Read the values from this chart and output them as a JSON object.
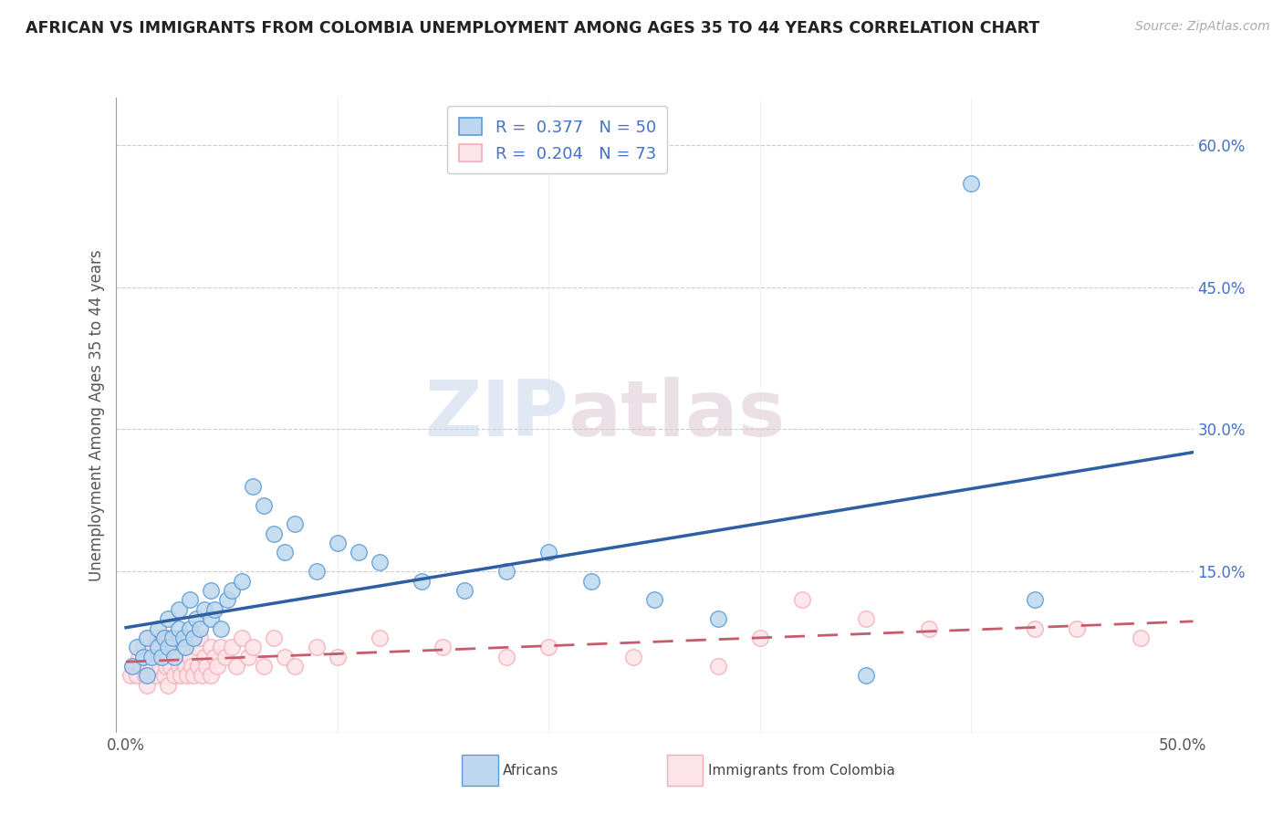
{
  "title": "AFRICAN VS IMMIGRANTS FROM COLOMBIA UNEMPLOYMENT AMONG AGES 35 TO 44 YEARS CORRELATION CHART",
  "source": "Source: ZipAtlas.com",
  "ylabel": "Unemployment Among Ages 35 to 44 years",
  "xlim": [
    -0.005,
    0.505
  ],
  "ylim": [
    -0.02,
    0.65
  ],
  "xtick_positions": [
    0.0,
    0.1,
    0.2,
    0.3,
    0.4,
    0.5
  ],
  "xtick_labels": [
    "0.0%",
    "",
    "",
    "",
    "",
    "50.0%"
  ],
  "ytick_positions": [
    0.15,
    0.3,
    0.45,
    0.6
  ],
  "ytick_labels": [
    "15.0%",
    "30.0%",
    "45.0%",
    "60.0%"
  ],
  "watermark_line1": "ZIP",
  "watermark_line2": "atlas",
  "legend_r1": "R =  0.377   N = 50",
  "legend_r2": "R =  0.204   N = 73",
  "legend_label1": "Africans",
  "legend_label2": "Immigrants from Colombia",
  "color_african_edge": "#5b9bd5",
  "color_african_fill": "#bdd7ee",
  "color_colombia_edge": "#f4acb7",
  "color_colombia_fill": "#fce4e8",
  "color_line_african": "#2e5fa3",
  "color_line_colombia": "#c45c6a",
  "color_ytick": "#4472c4",
  "africans_x": [
    0.003,
    0.005,
    0.008,
    0.01,
    0.01,
    0.012,
    0.015,
    0.015,
    0.017,
    0.018,
    0.02,
    0.02,
    0.022,
    0.023,
    0.025,
    0.025,
    0.027,
    0.028,
    0.03,
    0.03,
    0.032,
    0.033,
    0.035,
    0.037,
    0.04,
    0.04,
    0.042,
    0.045,
    0.048,
    0.05,
    0.055,
    0.06,
    0.065,
    0.07,
    0.075,
    0.08,
    0.09,
    0.1,
    0.11,
    0.12,
    0.14,
    0.16,
    0.18,
    0.35,
    0.4,
    0.43,
    0.2,
    0.22,
    0.25,
    0.28
  ],
  "africans_y": [
    0.05,
    0.07,
    0.06,
    0.04,
    0.08,
    0.06,
    0.07,
    0.09,
    0.06,
    0.08,
    0.07,
    0.1,
    0.08,
    0.06,
    0.09,
    0.11,
    0.08,
    0.07,
    0.09,
    0.12,
    0.08,
    0.1,
    0.09,
    0.11,
    0.1,
    0.13,
    0.11,
    0.09,
    0.12,
    0.13,
    0.14,
    0.24,
    0.22,
    0.19,
    0.17,
    0.2,
    0.15,
    0.18,
    0.17,
    0.16,
    0.14,
    0.13,
    0.15,
    0.04,
    0.56,
    0.12,
    0.17,
    0.14,
    0.12,
    0.1
  ],
  "colombia_x": [
    0.002,
    0.003,
    0.005,
    0.006,
    0.007,
    0.008,
    0.009,
    0.01,
    0.01,
    0.01,
    0.012,
    0.013,
    0.014,
    0.015,
    0.015,
    0.016,
    0.017,
    0.018,
    0.018,
    0.019,
    0.02,
    0.02,
    0.02,
    0.021,
    0.022,
    0.023,
    0.024,
    0.025,
    0.025,
    0.026,
    0.027,
    0.028,
    0.029,
    0.03,
    0.03,
    0.031,
    0.032,
    0.033,
    0.034,
    0.035,
    0.036,
    0.037,
    0.038,
    0.04,
    0.04,
    0.042,
    0.043,
    0.045,
    0.047,
    0.05,
    0.052,
    0.055,
    0.058,
    0.06,
    0.065,
    0.07,
    0.075,
    0.08,
    0.09,
    0.1,
    0.12,
    0.15,
    0.18,
    0.2,
    0.24,
    0.28,
    0.3,
    0.35,
    0.38,
    0.43,
    0.45,
    0.48,
    0.32
  ],
  "colombia_y": [
    0.04,
    0.05,
    0.04,
    0.06,
    0.05,
    0.07,
    0.04,
    0.03,
    0.06,
    0.08,
    0.05,
    0.07,
    0.04,
    0.06,
    0.08,
    0.05,
    0.07,
    0.04,
    0.06,
    0.05,
    0.03,
    0.06,
    0.08,
    0.05,
    0.07,
    0.04,
    0.06,
    0.05,
    0.08,
    0.04,
    0.07,
    0.05,
    0.04,
    0.06,
    0.08,
    0.05,
    0.04,
    0.07,
    0.05,
    0.08,
    0.04,
    0.06,
    0.05,
    0.04,
    0.07,
    0.06,
    0.05,
    0.07,
    0.06,
    0.07,
    0.05,
    0.08,
    0.06,
    0.07,
    0.05,
    0.08,
    0.06,
    0.05,
    0.07,
    0.06,
    0.08,
    0.07,
    0.06,
    0.07,
    0.06,
    0.05,
    0.08,
    0.1,
    0.09,
    0.09,
    0.09,
    0.08,
    0.12
  ]
}
